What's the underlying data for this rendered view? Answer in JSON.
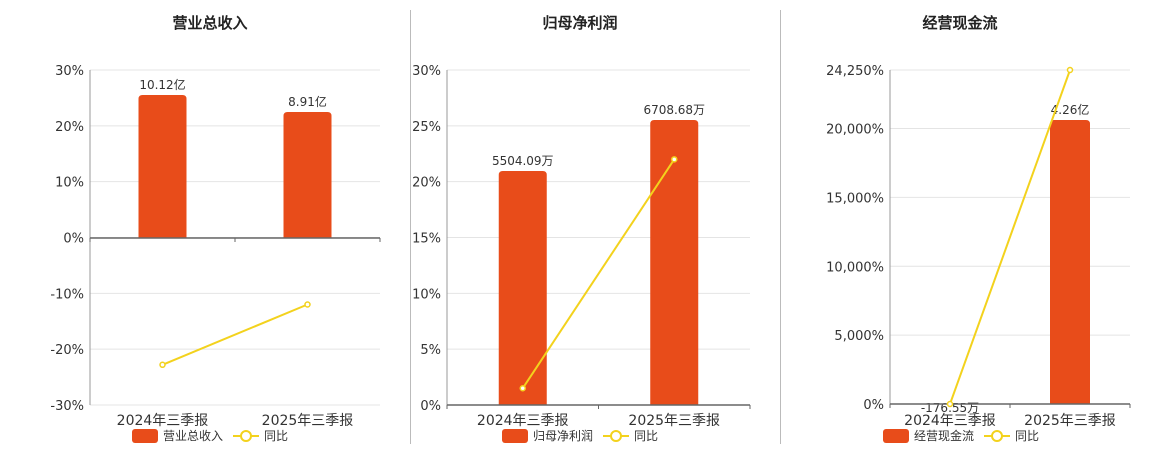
{
  "colors": {
    "bar": "#e84c1a",
    "line": "#f3d21d",
    "grid": "#e4e4e4",
    "axis": "#666666",
    "text": "#333333"
  },
  "chart_data": [
    {
      "type": "bar",
      "title": "营业总收入",
      "categories": [
        "2024年三季报",
        "2025年三季报"
      ],
      "bar_series": {
        "name": "营业总收入",
        "values": [
          10.12,
          8.91
        ],
        "labels": [
          "10.12亿",
          "8.91亿"
        ],
        "unit": "亿"
      },
      "line_series": {
        "name": "同比",
        "values": [
          -22.8,
          -12.0
        ],
        "unit": "%"
      },
      "yaxis": {
        "min": -30,
        "max": 30,
        "ticks": [
          30,
          20,
          10,
          0,
          -10,
          -20,
          -30
        ],
        "tick_labels": [
          "30%",
          "20%",
          "10%",
          "0%",
          "-10%",
          "-20%",
          "-30%"
        ]
      },
      "grid": true,
      "legend": "bottom-center"
    },
    {
      "type": "bar",
      "title": "归母净利润",
      "categories": [
        "2024年三季报",
        "2025年三季报"
      ],
      "bar_series": {
        "name": "归母净利润",
        "values": [
          5504.09,
          6708.68
        ],
        "labels": [
          "5504.09万",
          "6708.68万"
        ],
        "unit": "万"
      },
      "line_series": {
        "name": "同比",
        "values": [
          1.5,
          22.0
        ],
        "unit": "%"
      },
      "yaxis": {
        "min": 0,
        "max": 30,
        "ticks": [
          30,
          25,
          20,
          15,
          10,
          5,
          0
        ],
        "tick_labels": [
          "30%",
          "25%",
          "20%",
          "15%",
          "10%",
          "5%",
          "0%"
        ]
      },
      "grid": true,
      "legend": "bottom-center"
    },
    {
      "type": "bar",
      "title": "经营现金流",
      "categories": [
        "2024年三季报",
        "2025年三季报"
      ],
      "bar_series": {
        "name": "经营现金流",
        "values": [
          -176.55,
          42600
        ],
        "labels": [
          "-176.55万",
          "4.26亿"
        ],
        "unit": "万"
      },
      "line_series": {
        "name": "同比",
        "values": [
          0,
          24250
        ],
        "unit": "%"
      },
      "yaxis": {
        "min": 0,
        "max": 24250,
        "ticks": [
          24250,
          20000,
          15000,
          10000,
          5000,
          0
        ],
        "tick_labels": [
          "24,250%",
          "20,000%",
          "15,000%",
          "10,000%",
          "5,000%",
          "0%"
        ]
      },
      "grid": true,
      "legend": "bottom-center"
    }
  ]
}
